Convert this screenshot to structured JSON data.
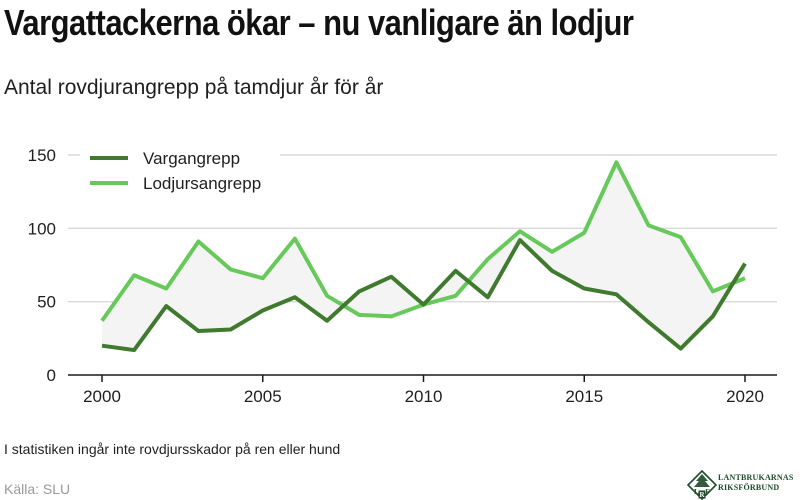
{
  "title": "Vargattackerna ökar – nu vanligare än lodjur",
  "subtitle": "Antal rovdjurangrepp på tamdjur år för år",
  "note": "I statistiken ingår inte rovdjursskador på ren eller hund",
  "source": "Källa: SLU",
  "logo": {
    "line1": "LANTBRUKARNAS",
    "line2": "RIKSFÖRBUND",
    "mark_letters": [
      "L",
      "R",
      "F"
    ],
    "color": "#1d4a2a"
  },
  "chart_data": {
    "type": "line",
    "x": [
      2000,
      2001,
      2002,
      2003,
      2004,
      2005,
      2006,
      2007,
      2008,
      2009,
      2010,
      2011,
      2012,
      2013,
      2014,
      2015,
      2016,
      2017,
      2018,
      2019,
      2020
    ],
    "series": [
      {
        "name": "Vargangrepp",
        "color": "#3f7a2e",
        "values": [
          20,
          17,
          47,
          30,
          31,
          44,
          53,
          37,
          57,
          67,
          48,
          71,
          53,
          92,
          71,
          59,
          55,
          36,
          18,
          40,
          76
        ]
      },
      {
        "name": "Lodjursangrepp",
        "color": "#66c95a",
        "values": [
          37,
          68,
          59,
          91,
          72,
          66,
          93,
          54,
          41,
          40,
          48,
          54,
          79,
          98,
          84,
          97,
          145,
          102,
          94,
          57,
          66
        ]
      }
    ],
    "xticks": [
      2000,
      2005,
      2010,
      2015,
      2020
    ],
    "xtick_labels": [
      "2000",
      "2005",
      "2010",
      "2015",
      "2020"
    ],
    "yticks": [
      0,
      50,
      100,
      150
    ],
    "ytick_labels": [
      "0",
      "50",
      "100",
      "150"
    ],
    "xlim": [
      2000,
      2020
    ],
    "ylim": [
      0,
      150
    ],
    "fill_between": true,
    "fill_color": "#f4f4f4",
    "grid": "horizontal",
    "legend_position": "top-left"
  }
}
